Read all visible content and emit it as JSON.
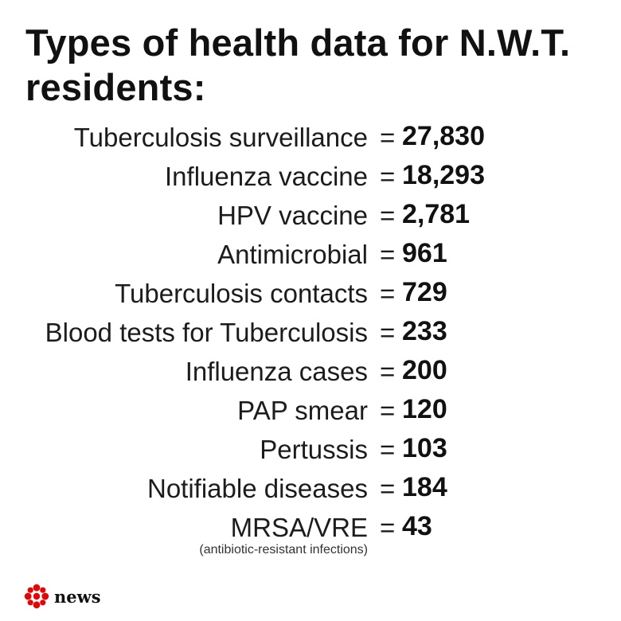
{
  "title": "Types of health data for N.W.T. residents:",
  "rows": [
    {
      "label": "Tuberculosis surveillance",
      "value": "27,830"
    },
    {
      "label": "Influenza vaccine",
      "value": "18,293"
    },
    {
      "label": "HPV vaccine",
      "value": "2,781"
    },
    {
      "label": "Antimicrobial",
      "value": "961"
    },
    {
      "label": "Tuberculosis contacts",
      "value": "729"
    },
    {
      "label": "Blood tests for Tuberculosis",
      "value": "233"
    },
    {
      "label": "Influenza cases",
      "value": "200"
    },
    {
      "label": "PAP smear",
      "value": "120"
    },
    {
      "label": "Pertussis",
      "value": "103"
    },
    {
      "label": "Notifiable diseases",
      "value": "184"
    },
    {
      "label": "MRSA/VRE",
      "value": "43"
    }
  ],
  "equals_sign": "=",
  "footnote": "(antibiotic-resistant infections)",
  "logo": {
    "text": "news",
    "icon": "cbc-gem-icon",
    "color": "#e60505"
  }
}
